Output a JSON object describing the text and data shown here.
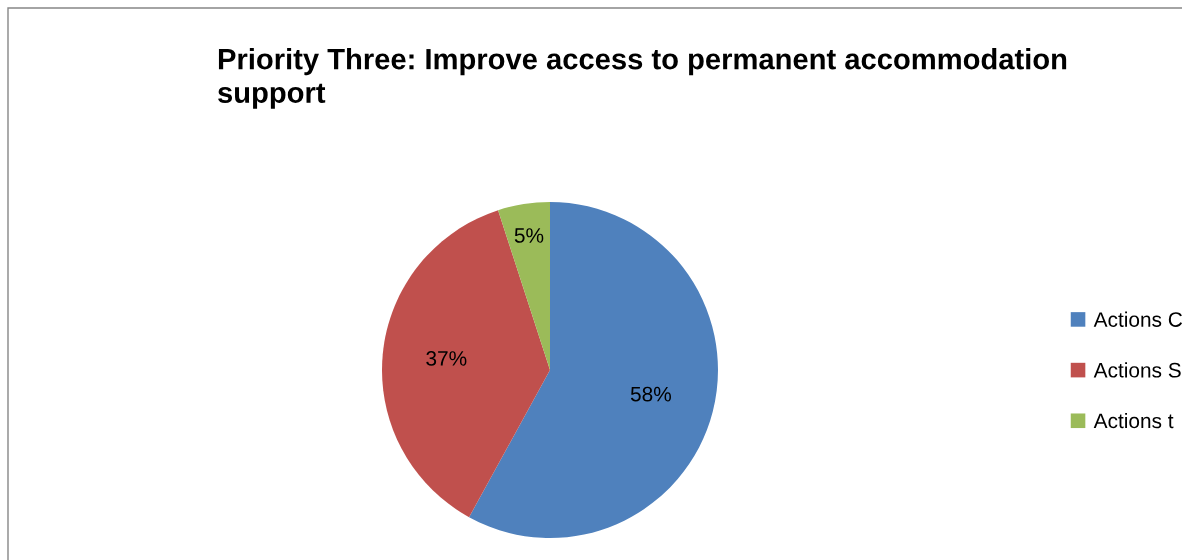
{
  "chart_data": {
    "type": "pie",
    "title": "Priority Three: Improve access to permanent accommodation\nsupport",
    "categories": [
      "Actions C",
      "Actions S",
      "Actions t"
    ],
    "values": [
      58,
      37,
      5
    ],
    "colors": [
      "#4f81bd",
      "#c0504d",
      "#9bbb59"
    ],
    "value_labels": [
      "58%",
      "37%",
      "5%"
    ],
    "legend": "right"
  }
}
